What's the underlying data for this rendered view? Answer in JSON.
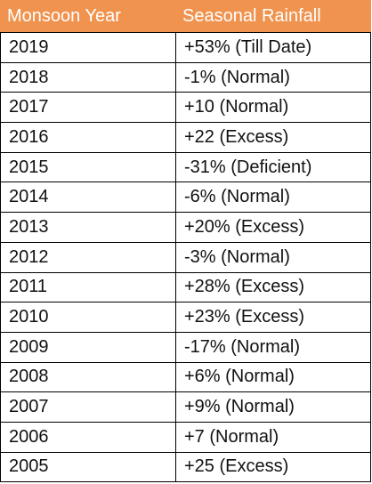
{
  "table": {
    "headers": [
      "Monsoon Year",
      "Seasonal Rainfall"
    ],
    "rows": [
      [
        "2019",
        "+53% (Till Date)"
      ],
      [
        "2018",
        "-1% (Normal)"
      ],
      [
        "2017",
        "+10 (Normal)"
      ],
      [
        "2016",
        "+22 (Excess)"
      ],
      [
        "2015",
        "-31% (Deficient)"
      ],
      [
        "2014",
        "-6% (Normal)"
      ],
      [
        "2013",
        "+20% (Excess)"
      ],
      [
        "2012",
        "-3% (Normal)"
      ],
      [
        "2011",
        "+28% (Excess)"
      ],
      [
        "2010",
        "+23% (Excess)"
      ],
      [
        "2009",
        "-17% (Normal)"
      ],
      [
        "2008",
        "+6% (Normal)"
      ],
      [
        "2007",
        "+9% (Normal)"
      ],
      [
        "2006",
        "+7 (Normal)"
      ],
      [
        "2005",
        "+25 (Excess)"
      ]
    ]
  },
  "colors": {
    "header_bg": "#f0934e",
    "header_text": "#ffffff",
    "border": "#000000"
  }
}
